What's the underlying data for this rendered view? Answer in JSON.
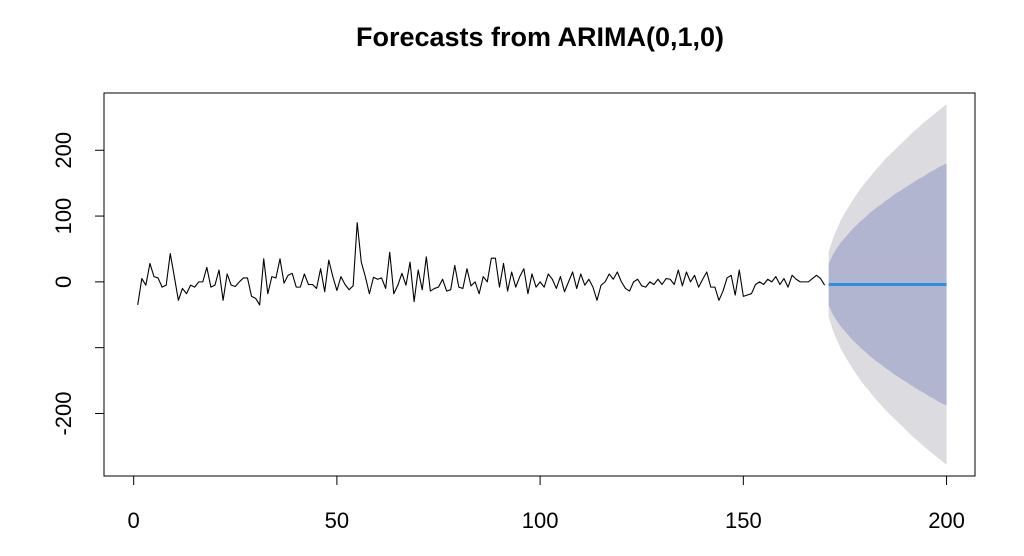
{
  "chart_data": {
    "type": "line",
    "title": "Forecasts from ARIMA(0,1,0)",
    "xlabel": "",
    "ylabel": "",
    "xlim": [
      -7.3,
      207
    ],
    "ylim": [
      -295,
      287
    ],
    "x_ticks": [
      0,
      50,
      100,
      150,
      200
    ],
    "y_ticks": [
      -200,
      -100,
      0,
      100,
      200
    ],
    "y_tick_labels": [
      "-200",
      "",
      "0",
      "100",
      "200"
    ],
    "observed": {
      "x_start": 1,
      "values": [
        -35,
        5,
        -5,
        28,
        8,
        6,
        -8,
        -5,
        43,
        8,
        -28,
        -10,
        -18,
        -5,
        -8,
        0,
        0,
        22,
        -8,
        -5,
        18,
        -28,
        12,
        -5,
        -7,
        0,
        6,
        6,
        -22,
        -25,
        -35,
        35,
        -18,
        8,
        6,
        35,
        -2,
        10,
        13,
        -8,
        -8,
        12,
        -4,
        -4,
        -10,
        20,
        -15,
        33,
        8,
        -13,
        8,
        -4,
        -12,
        -6,
        90,
        30,
        8,
        -18,
        7,
        4,
        6,
        -10,
        45,
        -18,
        -5,
        13,
        -5,
        30,
        -30,
        18,
        -12,
        38,
        -14,
        -10,
        -8,
        4,
        -14,
        -12,
        25,
        -8,
        -10,
        20,
        -6,
        0,
        -18,
        8,
        0,
        36,
        36,
        -8,
        28,
        -14,
        15,
        -8,
        8,
        20,
        -18,
        12,
        -8,
        0,
        -8,
        12,
        4,
        -10,
        8,
        -15,
        0,
        15,
        -10,
        12,
        -5,
        4,
        -8,
        -28,
        -5,
        0,
        12,
        4,
        15,
        0,
        -10,
        -14,
        0,
        4,
        -6,
        -8,
        0,
        -4,
        4,
        -4,
        5,
        4,
        -4,
        18,
        -6,
        15,
        0,
        10,
        -8,
        4,
        15,
        -8,
        -8,
        -28,
        -14,
        6,
        10,
        -20,
        18,
        -22,
        -20,
        -18,
        -4,
        0,
        -4,
        4,
        0,
        8,
        -4,
        5,
        -8,
        10,
        4,
        0,
        0,
        0,
        5,
        10,
        5,
        -5
      ]
    },
    "forecast": {
      "x_start": 171,
      "x_end": 200,
      "point": -4,
      "lower80": [
        -36,
        -49,
        -59,
        -68,
        -75,
        -82,
        -89,
        -95,
        -101,
        -106,
        -112,
        -117,
        -122,
        -126,
        -131,
        -135,
        -140,
        -144,
        -148,
        -152,
        -156,
        -160,
        -164,
        -167,
        -171,
        -175,
        -178,
        -182,
        -185,
        -188
      ],
      "upper80": [
        28,
        41,
        51,
        60,
        67,
        74,
        81,
        87,
        93,
        98,
        104,
        109,
        114,
        118,
        123,
        127,
        132,
        136,
        140,
        144,
        148,
        152,
        156,
        159,
        163,
        167,
        170,
        174,
        177,
        180
      ],
      "lower95": [
        -53,
        -73,
        -88,
        -102,
        -113,
        -123,
        -133,
        -142,
        -151,
        -159,
        -166,
        -174,
        -181,
        -188,
        -195,
        -201,
        -207,
        -213,
        -219,
        -225,
        -231,
        -237,
        -242,
        -248,
        -253,
        -258,
        -263,
        -268,
        -273,
        -278
      ],
      "upper95": [
        45,
        65,
        80,
        94,
        105,
        115,
        125,
        134,
        143,
        151,
        158,
        166,
        173,
        180,
        187,
        193,
        199,
        205,
        211,
        217,
        223,
        229,
        234,
        240,
        245,
        250,
        255,
        260,
        265,
        270
      ]
    },
    "colors": {
      "observed_line": "#000000",
      "forecast_line": "#2e8fe0",
      "band80": "#b1b5d0",
      "band95": "#dbdbe0",
      "axis": "#000000"
    },
    "grid": false,
    "legend": "none"
  }
}
